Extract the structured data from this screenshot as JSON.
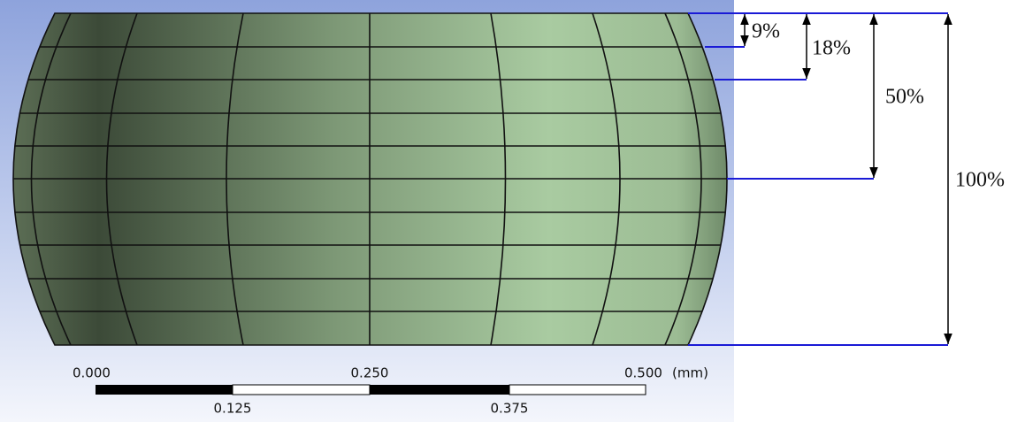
{
  "dimensions": [
    {
      "label": "9%"
    },
    {
      "label": "18%"
    },
    {
      "label": "50%"
    },
    {
      "label": "100%"
    }
  ],
  "scale_bar": {
    "top_labels": [
      "0.000",
      "0.250",
      "0.500"
    ],
    "unit": "(mm)",
    "bottom_labels": [
      "0.125",
      "0.375"
    ]
  }
}
